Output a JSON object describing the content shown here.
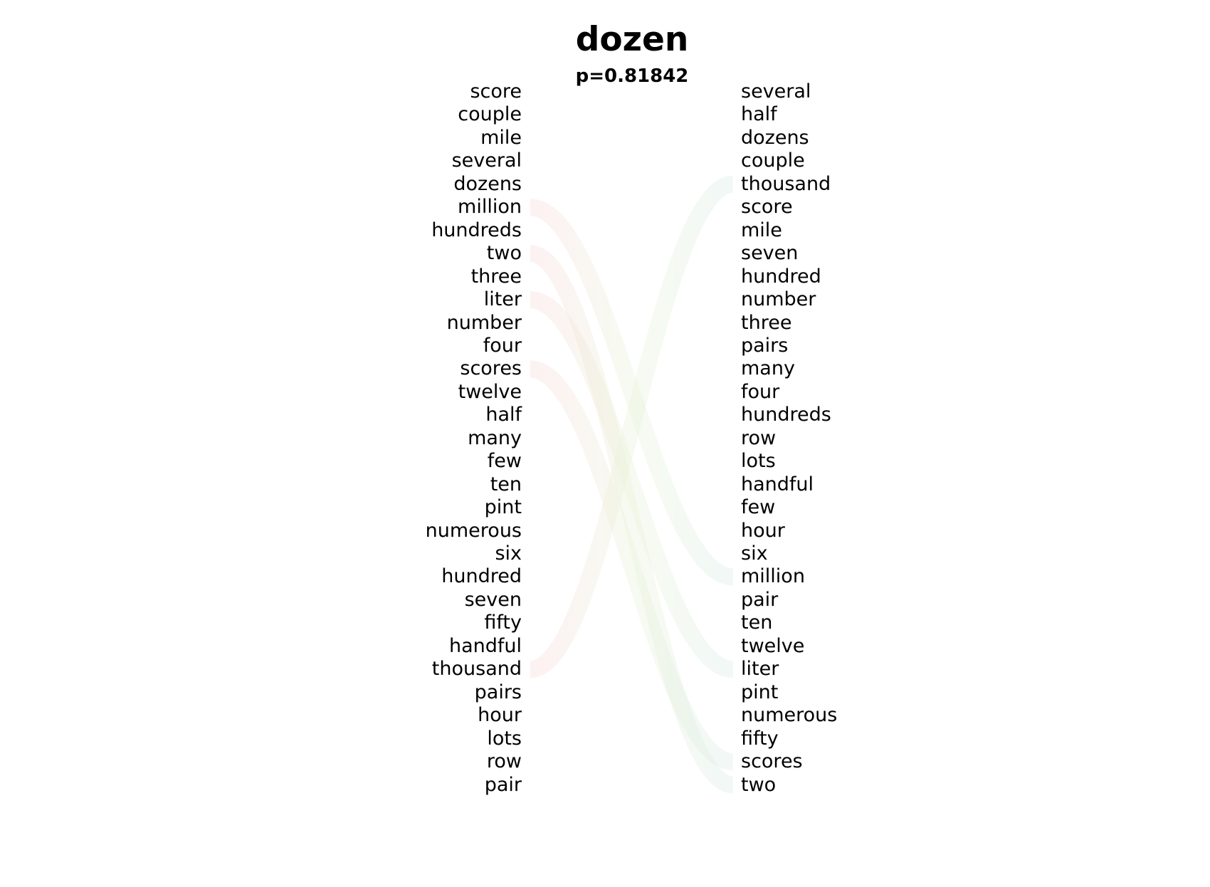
{
  "title": "dozen",
  "subtitle": "p=0.81842",
  "left_words": [
    "score",
    "couple",
    "mile",
    "several",
    "dozens",
    "million",
    "hundreds",
    "two",
    "three",
    "liter",
    "number",
    "four",
    "scores",
    "twelve",
    "half",
    "many",
    "few",
    "ten",
    "pint",
    "numerous",
    "six",
    "hundred",
    "seven",
    "fifty",
    "handful",
    "thousand",
    "pairs",
    "hour",
    "lots",
    "row",
    "pair"
  ],
  "right_words": [
    "several",
    "half",
    "dozens",
    "couple",
    "thousand",
    "score",
    "mile",
    "seven",
    "hundred",
    "number",
    "three",
    "pairs",
    "many",
    "four",
    "hundreds",
    "row",
    "lots",
    "handful",
    "few",
    "hour",
    "six",
    "million",
    "pair",
    "ten",
    "twelve",
    "liter",
    "pint",
    "numerous",
    "fifty",
    "scores",
    "two"
  ],
  "colors": {
    "left_flow": "#f8d8d8",
    "right_flow": "#d8ebe4",
    "mid_flow": "#e8f2d8"
  },
  "flows": [
    {
      "from": "million",
      "to": "million",
      "side": "left"
    },
    {
      "from": "two",
      "to": "two",
      "side": "left"
    },
    {
      "from": "liter",
      "to": "liter",
      "side": "left"
    },
    {
      "from": "scores",
      "to": "scores",
      "side": "left"
    },
    {
      "from": "thousand",
      "to": "thousand",
      "side": "left"
    }
  ]
}
